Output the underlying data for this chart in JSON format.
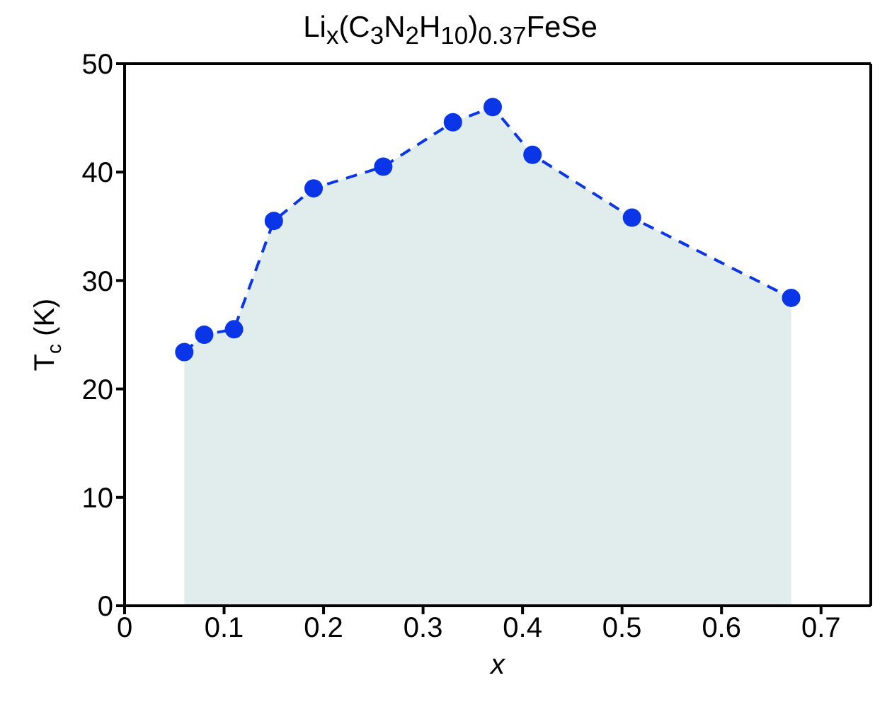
{
  "chart_data": {
    "type": "area",
    "title": "Li$_{x}$(C$_{3}$N$_{2}$H$_{10}$)$_{0.37}$FeSe",
    "xlabel": "x",
    "ylabel": "T$_{c}$ (K)",
    "series": [
      {
        "color": "#0a36e8",
        "x": [
          0.06,
          0.08,
          0.11,
          0.15,
          0.19,
          0.26,
          0.33,
          0.37,
          0.41,
          0.51,
          0.67
        ],
        "values": [
          23.4,
          25,
          25.5,
          35.5,
          38.5,
          40.5,
          44.6,
          46,
          41.6,
          35.8,
          28.4
        ]
      }
    ],
    "xlim": [
      0,
      0.75
    ],
    "xticks": [
      0,
      0.1,
      0.2,
      0.3,
      0.4,
      0.5,
      0.6,
      0.7
    ],
    "ylim": [
      0,
      50
    ],
    "yticks": [
      0,
      10,
      20,
      30,
      40,
      50
    ],
    "marker": "circle",
    "line_style": "dashed"
  }
}
